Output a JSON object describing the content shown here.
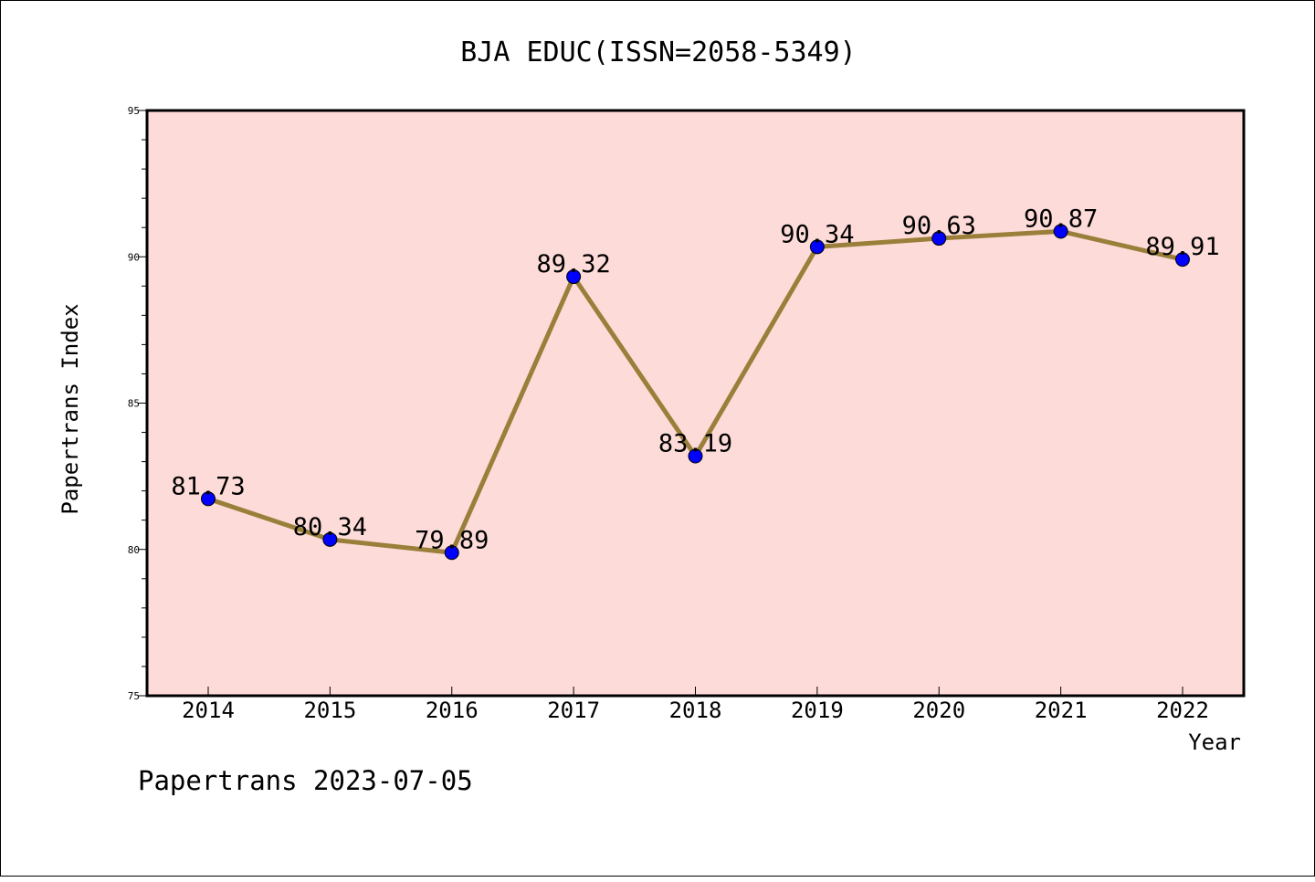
{
  "chart_data": {
    "type": "line",
    "title": "BJA EDUC(ISSN=2058-5349)",
    "xlabel": "Year",
    "ylabel": "Papertrans Index",
    "categories": [
      "2014",
      "2015",
      "2016",
      "2017",
      "2018",
      "2019",
      "2020",
      "2021",
      "2022"
    ],
    "series": [
      {
        "values": [
          81.73,
          80.34,
          79.89,
          89.32,
          83.19,
          90.34,
          90.63,
          90.87,
          89.91
        ],
        "labels": [
          "81.73",
          "80.34",
          "79.89",
          "89.32",
          "83.19",
          "90.34",
          "90.63",
          "90.87",
          "89.91"
        ]
      }
    ],
    "ylim": [
      75,
      95
    ],
    "yticks": [
      75,
      80,
      85,
      90,
      95
    ],
    "ytick_labels": [
      "75",
      "80",
      "85",
      "90",
      "95"
    ],
    "grid": false,
    "footer": "Papertrans 2023-07-05",
    "colors": {
      "plot_background": "#fddbd8",
      "line": "#9a7f3a",
      "marker": "#0000ff"
    }
  }
}
